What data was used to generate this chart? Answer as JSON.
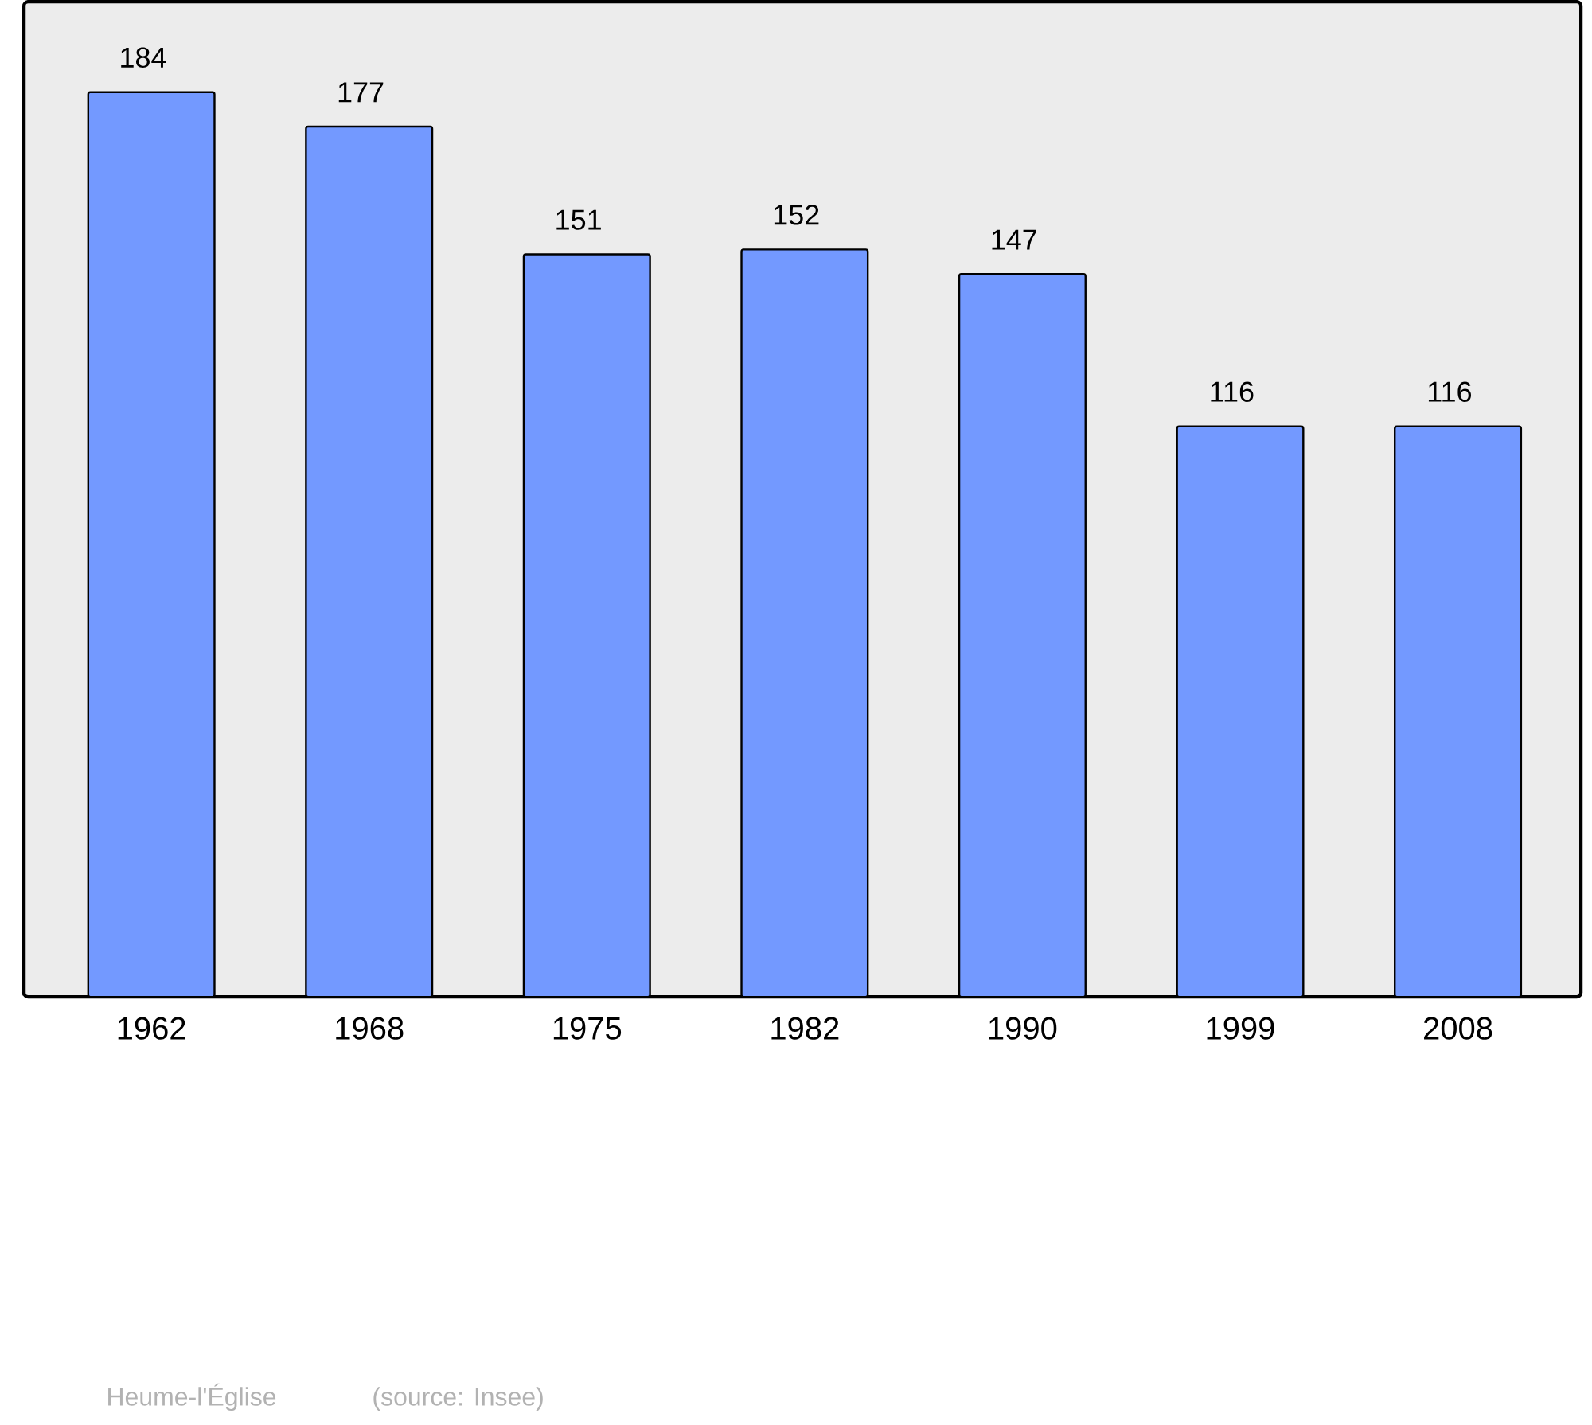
{
  "chart_data": {
    "type": "bar",
    "categories": [
      "1962",
      "1968",
      "1975",
      "1982",
      "1990",
      "1999",
      "2008"
    ],
    "values": [
      184,
      177,
      151,
      152,
      147,
      116,
      116
    ],
    "color": "#7399ff",
    "data_labels": true,
    "annotations": [
      "Heume-l'Église",
      "(source: Insee)"
    ]
  }
}
